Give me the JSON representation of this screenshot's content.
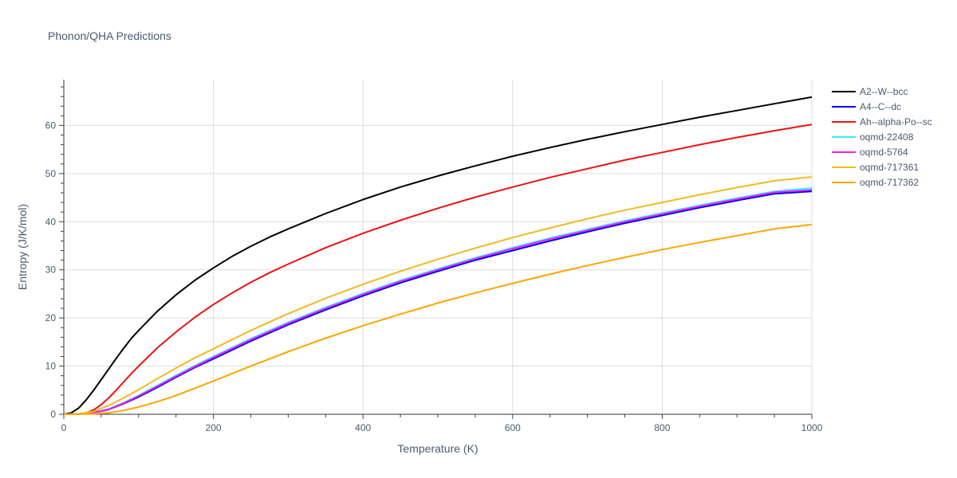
{
  "chart_data": {
    "type": "line",
    "title": "Phonon/QHA Predictions",
    "xlabel": "Temperature (K)",
    "ylabel": "Entropy (J/K/mol)",
    "xlim": [
      0,
      1000
    ],
    "ylim": [
      0,
      69.5
    ],
    "xticks": [
      0,
      200,
      400,
      600,
      800,
      1000
    ],
    "yticks": [
      0,
      10,
      20,
      30,
      40,
      50,
      60
    ],
    "grid": true,
    "legend_position": "top-right",
    "series": [
      {
        "name": "A2--W--bcc",
        "color": "#000000",
        "x": [
          0,
          10,
          20,
          30,
          40,
          50,
          60,
          70,
          80,
          90,
          100,
          125,
          150,
          175,
          200,
          225,
          250,
          275,
          300,
          350,
          400,
          450,
          500,
          550,
          600,
          650,
          700,
          750,
          800,
          850,
          900,
          950,
          1000
        ],
        "y": [
          0,
          0.3,
          1.3,
          3.0,
          5.0,
          7.2,
          9.4,
          11.6,
          13.7,
          15.7,
          17.4,
          21.4,
          24.8,
          27.8,
          30.4,
          32.8,
          34.9,
          36.8,
          38.5,
          41.7,
          44.6,
          47.2,
          49.5,
          51.6,
          53.6,
          55.4,
          57.1,
          58.7,
          60.2,
          61.7,
          63.1,
          64.5,
          65.9
        ]
      },
      {
        "name": "A4--C--dc",
        "color": "#0000ee",
        "x": [
          0,
          20,
          40,
          60,
          80,
          100,
          125,
          150,
          175,
          200,
          250,
          300,
          350,
          400,
          450,
          500,
          550,
          600,
          650,
          700,
          750,
          800,
          850,
          900,
          950,
          1000
        ],
        "y": [
          0,
          0.05,
          0.3,
          1.0,
          2.2,
          3.6,
          5.6,
          7.7,
          9.7,
          11.5,
          15.2,
          18.6,
          21.7,
          24.6,
          27.3,
          29.7,
          32.0,
          34.0,
          36.0,
          37.9,
          39.7,
          41.3,
          42.9,
          44.4,
          45.8,
          46.3
        ]
      },
      {
        "name": "Ah--alpha-Po--sc",
        "color": "#ee1111",
        "x": [
          0,
          20,
          30,
          40,
          50,
          60,
          70,
          80,
          90,
          100,
          125,
          150,
          175,
          200,
          225,
          250,
          275,
          300,
          350,
          400,
          450,
          500,
          550,
          600,
          650,
          700,
          750,
          800,
          850,
          900,
          950,
          1000
        ],
        "y": [
          0,
          0.05,
          0.3,
          0.9,
          2.0,
          3.4,
          5.0,
          6.7,
          8.4,
          10.0,
          13.8,
          17.1,
          20.1,
          22.8,
          25.2,
          27.4,
          29.4,
          31.2,
          34.6,
          37.6,
          40.3,
          42.8,
          45.1,
          47.2,
          49.2,
          51.0,
          52.8,
          54.4,
          56.0,
          57.5,
          58.9,
          60.2
        ]
      },
      {
        "name": "oqmd-22408",
        "color": "#33eeff",
        "x": [
          0,
          20,
          40,
          60,
          80,
          100,
          125,
          150,
          175,
          200,
          250,
          300,
          350,
          400,
          450,
          500,
          550,
          600,
          650,
          700,
          750,
          800,
          850,
          900,
          950,
          1000
        ],
        "y": [
          0,
          0.05,
          0.35,
          1.1,
          2.4,
          3.9,
          6.0,
          8.1,
          10.1,
          12.0,
          15.7,
          19.1,
          22.2,
          25.1,
          27.8,
          30.2,
          32.5,
          34.6,
          36.6,
          38.4,
          40.2,
          41.8,
          43.4,
          44.9,
          46.3,
          47.0
        ]
      },
      {
        "name": "oqmd-5764",
        "color": "#ee22ee",
        "x": [
          0,
          20,
          40,
          60,
          80,
          100,
          125,
          150,
          175,
          200,
          250,
          300,
          350,
          400,
          450,
          500,
          550,
          600,
          650,
          700,
          750,
          800,
          850,
          900,
          950,
          1000
        ],
        "y": [
          0,
          0.05,
          0.33,
          1.05,
          2.3,
          3.8,
          5.8,
          7.9,
          9.9,
          11.8,
          15.5,
          18.9,
          22.0,
          24.9,
          27.6,
          30.0,
          32.3,
          34.4,
          36.4,
          38.2,
          40.0,
          41.6,
          43.2,
          44.7,
          46.1,
          46.6
        ]
      },
      {
        "name": "oqmd-717361",
        "color": "#eebb22",
        "x": [
          0,
          20,
          40,
          60,
          80,
          100,
          125,
          150,
          175,
          200,
          250,
          300,
          350,
          400,
          450,
          500,
          550,
          600,
          650,
          700,
          750,
          800,
          850,
          900,
          950,
          1000
        ],
        "y": [
          0,
          0.08,
          0.6,
          1.8,
          3.4,
          5.1,
          7.4,
          9.6,
          11.7,
          13.6,
          17.4,
          20.9,
          24.1,
          27.0,
          29.7,
          32.2,
          34.5,
          36.7,
          38.7,
          40.6,
          42.4,
          44.0,
          45.6,
          47.1,
          48.5,
          49.3
        ]
      },
      {
        "name": "oqmd-717362",
        "color": "#ffa500",
        "x": [
          0,
          20,
          40,
          60,
          80,
          100,
          125,
          150,
          175,
          200,
          250,
          300,
          350,
          400,
          450,
          500,
          550,
          600,
          650,
          700,
          750,
          800,
          850,
          900,
          950,
          1000
        ],
        "y": [
          0,
          0.01,
          0.08,
          0.3,
          0.8,
          1.5,
          2.6,
          3.9,
          5.4,
          6.9,
          10.0,
          13.0,
          15.8,
          18.4,
          20.8,
          23.1,
          25.2,
          27.2,
          29.1,
          30.9,
          32.6,
          34.2,
          35.7,
          37.1,
          38.5,
          39.4
        ]
      }
    ]
  }
}
